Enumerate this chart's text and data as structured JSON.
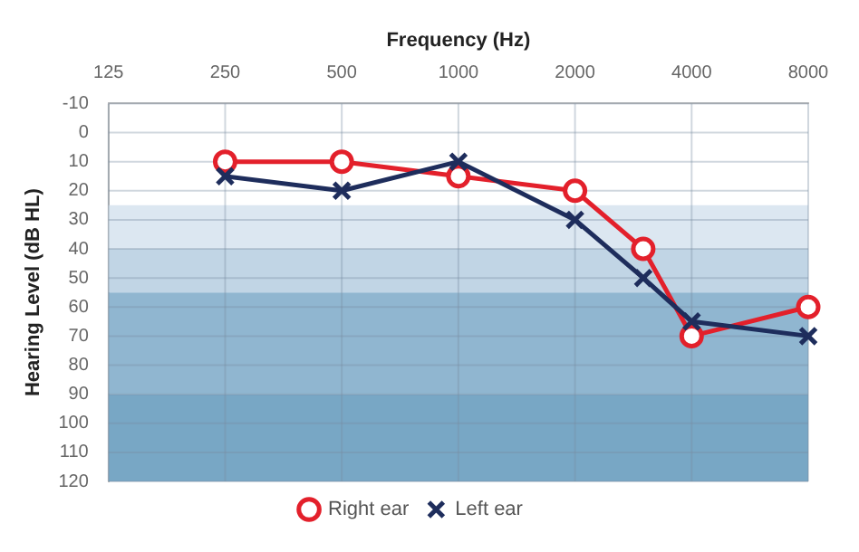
{
  "chart_data": {
    "type": "line",
    "xlabel": "Frequency (Hz)",
    "ylabel": "Hearing Level (dB HL)",
    "log": "x",
    "xlim": [
      125,
      8000
    ],
    "xticks": [
      125,
      250,
      500,
      1000,
      2000,
      4000,
      8000
    ],
    "ylim": [
      120,
      -10
    ],
    "yticks": [
      -10,
      0,
      10,
      20,
      30,
      40,
      50,
      60,
      70,
      80,
      90,
      100,
      110,
      120
    ],
    "x": [
      250,
      500,
      1000,
      2000,
      3000,
      4000,
      8000
    ],
    "series": [
      {
        "name": "Right ear",
        "color": "#e3202b",
        "marker": "circle",
        "values": [
          10,
          10,
          15,
          20,
          40,
          70,
          60
        ]
      },
      {
        "name": "Left ear",
        "color": "#1e2d5c",
        "marker": "cross",
        "values": [
          15,
          20,
          10,
          30,
          50,
          65,
          70
        ]
      }
    ],
    "bands": [
      {
        "axis": "y",
        "from": 25,
        "to": 40,
        "color": "#dce7f1"
      },
      {
        "axis": "y",
        "from": 40,
        "to": 55,
        "color": "#c1d5e5"
      },
      {
        "axis": "y",
        "from": 55,
        "to": 90,
        "color": "#90b6d0"
      },
      {
        "axis": "y",
        "from": 90,
        "to": 120,
        "color": "#78a7c5"
      }
    ],
    "grid": true,
    "legend": "bottom",
    "line_style": "solid"
  }
}
